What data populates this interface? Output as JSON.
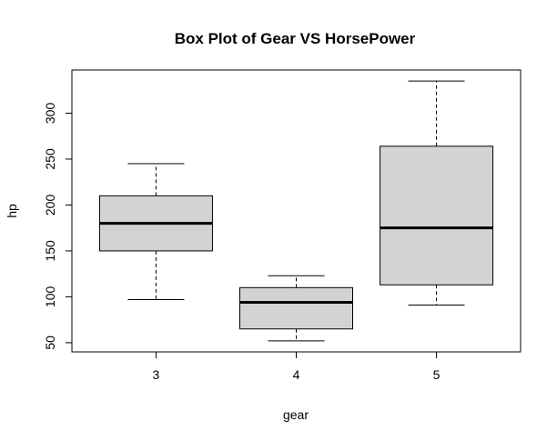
{
  "chart_data": {
    "type": "boxplot",
    "title": "Box Plot of Gear VS HorsePower",
    "xlabel": "gear",
    "ylabel": "hp",
    "categories": [
      "3",
      "4",
      "5"
    ],
    "boxes": [
      {
        "category": "3",
        "whisker_low": 97,
        "q1": 150,
        "median": 180,
        "q3": 210,
        "whisker_high": 245
      },
      {
        "category": "4",
        "whisker_low": 52,
        "q1": 65,
        "median": 94,
        "q3": 110,
        "whisker_high": 123
      },
      {
        "category": "5",
        "whisker_low": 91,
        "q1": 113,
        "median": 175,
        "q3": 264,
        "whisker_high": 335
      }
    ],
    "yticks": [
      50,
      100,
      150,
      200,
      250,
      300
    ],
    "ylim": [
      40,
      347
    ],
    "grid": false,
    "legend": "none",
    "box_fill": "#d3d3d3",
    "line_color": "#000000"
  }
}
